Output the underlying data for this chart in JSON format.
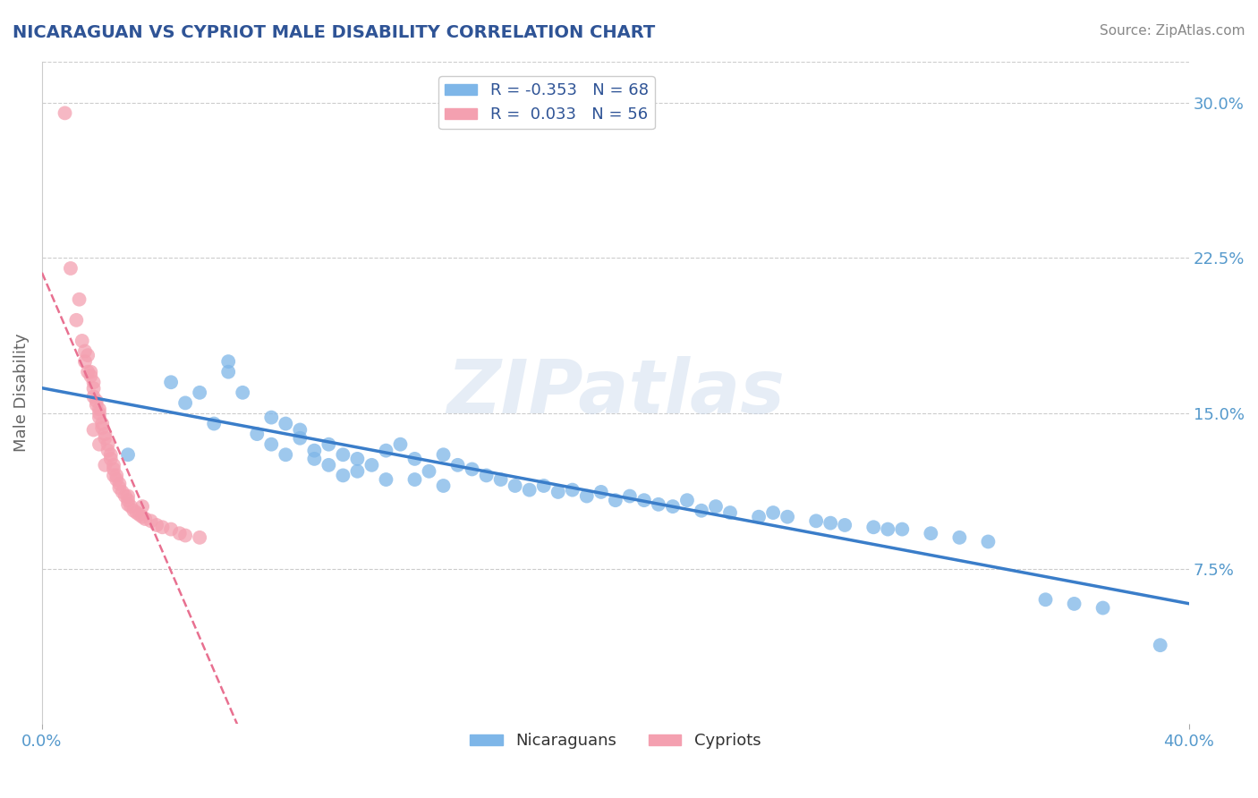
{
  "title": "NICARAGUAN VS CYPRIOT MALE DISABILITY CORRELATION CHART",
  "source_text": "Source: ZipAtlas.com",
  "ylabel": "Male Disability",
  "xlim": [
    0.0,
    0.4
  ],
  "ylim": [
    0.0,
    0.32
  ],
  "xticks": [
    0.0,
    0.4
  ],
  "xticklabels": [
    "0.0%",
    "40.0%"
  ],
  "yticks_right": [
    0.075,
    0.15,
    0.225,
    0.3
  ],
  "ytick_right_labels": [
    "7.5%",
    "15.0%",
    "22.5%",
    "30.0%"
  ],
  "nicaraguan_color": "#7EB6E8",
  "cypriot_color": "#F4A0B0",
  "nicaraguan_trend_color": "#3A7DC9",
  "cypriot_trend_color": "#E87090",
  "legend_R_nicaraguan": "-0.353",
  "legend_N_nicaraguan": "68",
  "legend_R_cypriot": "0.033",
  "legend_N_cypriot": "56",
  "background_color": "#ffffff",
  "grid_color": "#cccccc",
  "watermark": "ZIPatlas",
  "title_color": "#2F5496",
  "axis_label_color": "#666666",
  "tick_label_color": "#5599CC",
  "nicaraguan_x": [
    0.03,
    0.045,
    0.05,
    0.055,
    0.06,
    0.065,
    0.065,
    0.07,
    0.075,
    0.08,
    0.08,
    0.085,
    0.085,
    0.09,
    0.09,
    0.095,
    0.095,
    0.1,
    0.1,
    0.105,
    0.105,
    0.11,
    0.11,
    0.115,
    0.12,
    0.12,
    0.125,
    0.13,
    0.13,
    0.135,
    0.14,
    0.14,
    0.145,
    0.15,
    0.155,
    0.16,
    0.165,
    0.17,
    0.175,
    0.18,
    0.185,
    0.19,
    0.195,
    0.2,
    0.205,
    0.21,
    0.215,
    0.22,
    0.225,
    0.23,
    0.235,
    0.24,
    0.25,
    0.255,
    0.26,
    0.27,
    0.275,
    0.28,
    0.29,
    0.295,
    0.3,
    0.31,
    0.32,
    0.33,
    0.35,
    0.36,
    0.37,
    0.39
  ],
  "nicaraguan_y": [
    0.13,
    0.165,
    0.155,
    0.16,
    0.145,
    0.17,
    0.175,
    0.16,
    0.14,
    0.148,
    0.135,
    0.145,
    0.13,
    0.138,
    0.142,
    0.132,
    0.128,
    0.135,
    0.125,
    0.13,
    0.12,
    0.128,
    0.122,
    0.125,
    0.132,
    0.118,
    0.135,
    0.128,
    0.118,
    0.122,
    0.13,
    0.115,
    0.125,
    0.123,
    0.12,
    0.118,
    0.115,
    0.113,
    0.115,
    0.112,
    0.113,
    0.11,
    0.112,
    0.108,
    0.11,
    0.108,
    0.106,
    0.105,
    0.108,
    0.103,
    0.105,
    0.102,
    0.1,
    0.102,
    0.1,
    0.098,
    0.097,
    0.096,
    0.095,
    0.094,
    0.094,
    0.092,
    0.09,
    0.088,
    0.06,
    0.058,
    0.056,
    0.038
  ],
  "cypriot_x": [
    0.008,
    0.01,
    0.012,
    0.013,
    0.014,
    0.015,
    0.015,
    0.016,
    0.016,
    0.017,
    0.017,
    0.018,
    0.018,
    0.018,
    0.019,
    0.019,
    0.02,
    0.02,
    0.02,
    0.021,
    0.021,
    0.022,
    0.022,
    0.023,
    0.023,
    0.024,
    0.024,
    0.025,
    0.025,
    0.026,
    0.026,
    0.027,
    0.027,
    0.028,
    0.029,
    0.03,
    0.03,
    0.031,
    0.032,
    0.033,
    0.034,
    0.035,
    0.036,
    0.038,
    0.04,
    0.042,
    0.045,
    0.048,
    0.05,
    0.055,
    0.018,
    0.02,
    0.022,
    0.025,
    0.03,
    0.035
  ],
  "cypriot_y": [
    0.295,
    0.22,
    0.195,
    0.205,
    0.185,
    0.18,
    0.175,
    0.178,
    0.17,
    0.17,
    0.168,
    0.165,
    0.162,
    0.158,
    0.156,
    0.154,
    0.152,
    0.15,
    0.148,
    0.145,
    0.143,
    0.14,
    0.138,
    0.135,
    0.132,
    0.13,
    0.128,
    0.125,
    0.123,
    0.12,
    0.118,
    0.116,
    0.114,
    0.112,
    0.11,
    0.108,
    0.106,
    0.105,
    0.103,
    0.102,
    0.101,
    0.1,
    0.099,
    0.098,
    0.096,
    0.095,
    0.094,
    0.092,
    0.091,
    0.09,
    0.142,
    0.135,
    0.125,
    0.12,
    0.11,
    0.105
  ]
}
